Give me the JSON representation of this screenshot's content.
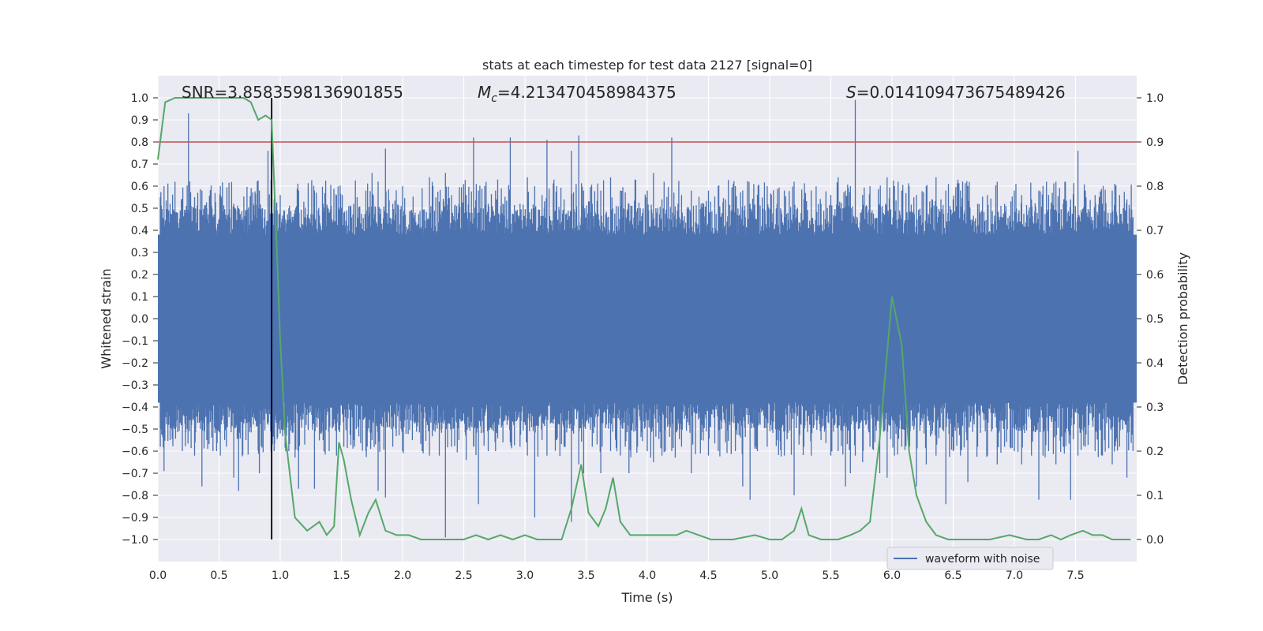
{
  "chart_data": {
    "type": "line",
    "title": "stats at each timestep for test data 2127 [signal=0]",
    "xlabel": "Time (s)",
    "ylabel": "Whitened strain",
    "y2label": "Detection probability",
    "xlim": [
      0,
      8.0
    ],
    "ylim": [
      -1.1,
      1.1
    ],
    "y2lim": [
      -0.05,
      1.05
    ],
    "xticks": [
      0.0,
      0.5,
      1.0,
      1.5,
      2.0,
      2.5,
      3.0,
      3.5,
      4.0,
      4.5,
      5.0,
      5.5,
      6.0,
      6.5,
      7.0,
      7.5
    ],
    "xtick_labels": [
      "0.0",
      "0.5",
      "1.0",
      "1.5",
      "2.0",
      "2.5",
      "3.0",
      "3.5",
      "4.0",
      "4.5",
      "5.0",
      "5.5",
      "6.0",
      "6.5",
      "7.0",
      "7.5"
    ],
    "yticks": [
      1.0,
      0.9,
      0.8,
      0.7,
      0.6,
      0.5,
      0.4,
      0.3,
      0.2,
      0.1,
      0.0,
      -0.1,
      -0.2,
      -0.3,
      -0.4,
      -0.5,
      -0.6,
      -0.7,
      -0.8,
      -0.9,
      -1.0
    ],
    "ytick_labels": [
      "1.0",
      "0.9",
      "0.8",
      "0.7",
      "0.6",
      "0.5",
      "0.4",
      "0.3",
      "0.2",
      "0.1",
      "0.0",
      "−0.1",
      "−0.2",
      "−0.3",
      "−0.4",
      "−0.5",
      "−0.6",
      "−0.7",
      "−0.8",
      "−0.9",
      "−1.0"
    ],
    "y2ticks": [
      1.0,
      0.9,
      0.8,
      0.7,
      0.6,
      0.5,
      0.4,
      0.3,
      0.2,
      0.1,
      0.0
    ],
    "y2tick_labels": [
      "1.0",
      "0.9",
      "0.8",
      "0.7",
      "0.6",
      "0.5",
      "0.4",
      "0.3",
      "0.2",
      "0.1",
      "0.0"
    ],
    "grid": true,
    "annotations": {
      "snr": "SNR=3.8583598136901855",
      "mc_symbol": "M",
      "mc_sub": "c",
      "mc_value": "=4.213470458984375",
      "s_symbol": "S",
      "s_value": "=0.014109473675489426"
    },
    "threshold_line": {
      "y": 0.8,
      "color": "#c44e52"
    },
    "vertical_marker": {
      "x": 0.93,
      "ymin": -1.0,
      "ymax": 1.0,
      "color": "#000000"
    },
    "legend": {
      "position": "lower-right",
      "entries": [
        "waveform with noise"
      ]
    },
    "colors": {
      "waveform": "#4c72b0",
      "probability": "#55a868",
      "background": "#eaeaf2",
      "grid": "#ffffff"
    },
    "waveform": {
      "name": "waveform with noise",
      "band_low": -0.38,
      "band_high": 0.38,
      "description_peaks_note": "dense noisy strain, peaks listed as [t, top, bottom]",
      "peaks": [
        [
          0.02,
          0.55,
          -0.58
        ],
        [
          0.05,
          0.6,
          -0.69
        ],
        [
          0.1,
          0.52,
          -0.55
        ],
        [
          0.14,
          0.62,
          -0.5
        ],
        [
          0.2,
          0.48,
          -0.6
        ],
        [
          0.25,
          0.93,
          -0.45
        ],
        [
          0.3,
          0.55,
          -0.62
        ],
        [
          0.36,
          0.58,
          -0.76
        ],
        [
          0.4,
          0.5,
          -0.55
        ],
        [
          0.45,
          0.46,
          -0.6
        ],
        [
          0.51,
          0.6,
          -0.62
        ],
        [
          0.56,
          0.45,
          -0.58
        ],
        [
          0.62,
          0.52,
          -0.72
        ],
        [
          0.66,
          0.5,
          -0.78
        ],
        [
          0.72,
          0.46,
          -0.55
        ],
        [
          0.78,
          0.52,
          -0.48
        ],
        [
          0.83,
          0.58,
          -0.7
        ],
        [
          0.9,
          0.76,
          -0.48
        ],
        [
          0.95,
          0.54,
          -0.6
        ],
        [
          1.0,
          0.56,
          -0.52
        ],
        [
          1.07,
          0.5,
          -0.6
        ],
        [
          1.15,
          0.58,
          -0.77
        ],
        [
          1.2,
          0.46,
          -0.57
        ],
        [
          1.28,
          0.58,
          -0.77
        ],
        [
          1.35,
          0.52,
          -0.55
        ],
        [
          1.4,
          0.48,
          -0.6
        ],
        [
          1.46,
          0.56,
          -0.62
        ],
        [
          1.52,
          0.48,
          -0.58
        ],
        [
          1.6,
          0.52,
          -0.55
        ],
        [
          1.7,
          0.58,
          -0.6
        ],
        [
          1.75,
          0.66,
          -0.55
        ],
        [
          1.8,
          0.62,
          -0.78
        ],
        [
          1.86,
          0.77,
          -0.81
        ],
        [
          1.92,
          0.52,
          -0.58
        ],
        [
          2.0,
          0.6,
          -0.6
        ],
        [
          2.08,
          0.48,
          -0.55
        ],
        [
          2.16,
          0.59,
          -0.6
        ],
        [
          2.22,
          0.64,
          -0.62
        ],
        [
          2.3,
          0.53,
          -0.62
        ],
        [
          2.35,
          0.66,
          -0.99
        ],
        [
          2.4,
          0.56,
          -0.58
        ],
        [
          2.46,
          0.52,
          -0.55
        ],
        [
          2.52,
          0.56,
          -0.64
        ],
        [
          2.58,
          0.82,
          -0.58
        ],
        [
          2.62,
          0.58,
          -0.84
        ],
        [
          2.7,
          0.52,
          -0.6
        ],
        [
          2.76,
          0.58,
          -0.6
        ],
        [
          2.82,
          0.52,
          -0.56
        ],
        [
          2.88,
          0.82,
          -0.56
        ],
        [
          2.96,
          0.52,
          -0.58
        ],
        [
          3.02,
          0.64,
          -0.62
        ],
        [
          3.08,
          0.6,
          -0.9
        ],
        [
          3.14,
          0.56,
          -0.55
        ],
        [
          3.18,
          0.81,
          -0.62
        ],
        [
          3.26,
          0.6,
          -0.55
        ],
        [
          3.32,
          0.54,
          -0.58
        ],
        [
          3.38,
          0.76,
          -0.92
        ],
        [
          3.44,
          0.83,
          -0.66
        ],
        [
          3.48,
          0.58,
          -0.7
        ],
        [
          3.55,
          0.52,
          -0.58
        ],
        [
          3.62,
          0.58,
          -0.7
        ],
        [
          3.7,
          0.64,
          -0.6
        ],
        [
          3.78,
          0.58,
          -0.62
        ],
        [
          3.85,
          0.52,
          -0.7
        ],
        [
          3.92,
          0.5,
          -0.58
        ],
        [
          4.0,
          0.58,
          -0.6
        ],
        [
          4.05,
          0.66,
          -0.65
        ],
        [
          4.12,
          0.54,
          -0.62
        ],
        [
          4.2,
          0.82,
          -0.6
        ],
        [
          4.28,
          0.56,
          -0.58
        ],
        [
          4.36,
          0.58,
          -0.7
        ],
        [
          4.44,
          0.52,
          -0.55
        ],
        [
          4.5,
          0.58,
          -0.62
        ],
        [
          4.58,
          0.6,
          -0.6
        ],
        [
          4.64,
          0.54,
          -0.56
        ],
        [
          4.72,
          0.6,
          -0.6
        ],
        [
          4.78,
          0.58,
          -0.76
        ],
        [
          4.84,
          0.52,
          -0.82
        ],
        [
          4.9,
          0.56,
          -0.6
        ],
        [
          4.98,
          0.6,
          -0.58
        ],
        [
          5.06,
          0.52,
          -0.55
        ],
        [
          5.12,
          0.58,
          -0.62
        ],
        [
          5.2,
          0.62,
          -0.8
        ],
        [
          5.28,
          0.54,
          -0.58
        ],
        [
          5.34,
          0.58,
          -0.62
        ],
        [
          5.42,
          0.52,
          -0.55
        ],
        [
          5.5,
          0.56,
          -0.62
        ],
        [
          5.56,
          0.64,
          -0.6
        ],
        [
          5.62,
          0.58,
          -0.76
        ],
        [
          5.66,
          0.6,
          -0.7
        ],
        [
          5.7,
          0.99,
          -0.62
        ],
        [
          5.76,
          0.56,
          -0.65
        ],
        [
          5.82,
          0.6,
          -0.58
        ],
        [
          5.9,
          0.52,
          -0.7
        ],
        [
          5.96,
          0.64,
          -0.72
        ],
        [
          6.02,
          0.6,
          -0.62
        ],
        [
          6.08,
          0.58,
          -0.58
        ],
        [
          6.14,
          0.6,
          -0.6
        ],
        [
          6.2,
          0.56,
          -0.76
        ],
        [
          6.28,
          0.6,
          -0.66
        ],
        [
          6.36,
          0.64,
          -0.62
        ],
        [
          6.44,
          0.58,
          -0.84
        ],
        [
          6.5,
          0.54,
          -0.6
        ],
        [
          6.56,
          0.58,
          -0.62
        ],
        [
          6.62,
          0.6,
          -0.74
        ],
        [
          6.7,
          0.52,
          -0.58
        ],
        [
          6.78,
          0.56,
          -0.62
        ],
        [
          6.86,
          0.62,
          -0.66
        ],
        [
          6.92,
          0.52,
          -0.58
        ],
        [
          7.0,
          0.58,
          -0.6
        ],
        [
          7.06,
          0.56,
          -0.66
        ],
        [
          7.14,
          0.54,
          -0.62
        ],
        [
          7.2,
          0.58,
          -0.82
        ],
        [
          7.28,
          0.56,
          -0.6
        ],
        [
          7.34,
          0.62,
          -0.66
        ],
        [
          7.4,
          0.52,
          -0.58
        ],
        [
          7.46,
          0.54,
          -0.82
        ],
        [
          7.52,
          0.76,
          -0.62
        ],
        [
          7.58,
          0.58,
          -0.58
        ],
        [
          7.66,
          0.56,
          -0.6
        ],
        [
          7.72,
          0.52,
          -0.62
        ],
        [
          7.8,
          0.58,
          -0.66
        ],
        [
          7.86,
          0.56,
          -0.58
        ],
        [
          7.92,
          0.54,
          -0.72
        ],
        [
          7.97,
          0.46,
          -0.6
        ]
      ]
    },
    "probability": {
      "name": "detection probability",
      "x": [
        0.0,
        0.06,
        0.14,
        0.3,
        0.5,
        0.7,
        0.76,
        0.82,
        0.88,
        0.93,
        0.97,
        1.0,
        1.04,
        1.12,
        1.22,
        1.32,
        1.38,
        1.44,
        1.48,
        1.52,
        1.58,
        1.65,
        1.72,
        1.78,
        1.86,
        1.95,
        2.05,
        2.15,
        2.3,
        2.5,
        2.6,
        2.7,
        2.8,
        2.9,
        3.0,
        3.1,
        3.2,
        3.3,
        3.38,
        3.46,
        3.52,
        3.6,
        3.66,
        3.72,
        3.78,
        3.86,
        3.94,
        4.04,
        4.14,
        4.24,
        4.32,
        4.42,
        4.52,
        4.7,
        4.88,
        5.0,
        5.1,
        5.2,
        5.26,
        5.32,
        5.42,
        5.56,
        5.66,
        5.74,
        5.82,
        5.9,
        6.0,
        6.08,
        6.14,
        6.2,
        6.28,
        6.36,
        6.46,
        6.6,
        6.8,
        6.96,
        7.1,
        7.2,
        7.3,
        7.38,
        7.46,
        7.56,
        7.64,
        7.72,
        7.8,
        7.9,
        7.95
      ],
      "y": [
        0.86,
        0.99,
        1.0,
        1.0,
        1.0,
        1.0,
        0.99,
        0.95,
        0.96,
        0.95,
        0.67,
        0.45,
        0.24,
        0.05,
        0.02,
        0.04,
        0.01,
        0.03,
        0.22,
        0.18,
        0.09,
        0.01,
        0.06,
        0.09,
        0.02,
        0.01,
        0.01,
        0.0,
        0.0,
        0.0,
        0.01,
        0.0,
        0.01,
        0.0,
        0.01,
        0.0,
        0.0,
        0.0,
        0.07,
        0.17,
        0.06,
        0.03,
        0.07,
        0.14,
        0.04,
        0.01,
        0.01,
        0.01,
        0.01,
        0.01,
        0.02,
        0.01,
        0.0,
        0.0,
        0.01,
        0.0,
        0.0,
        0.02,
        0.07,
        0.01,
        0.0,
        0.0,
        0.01,
        0.02,
        0.04,
        0.23,
        0.55,
        0.44,
        0.2,
        0.1,
        0.04,
        0.01,
        0.0,
        0.0,
        0.0,
        0.01,
        0.0,
        0.0,
        0.01,
        0.0,
        0.01,
        0.02,
        0.01,
        0.01,
        0.0,
        0.0,
        0.0
      ]
    }
  }
}
